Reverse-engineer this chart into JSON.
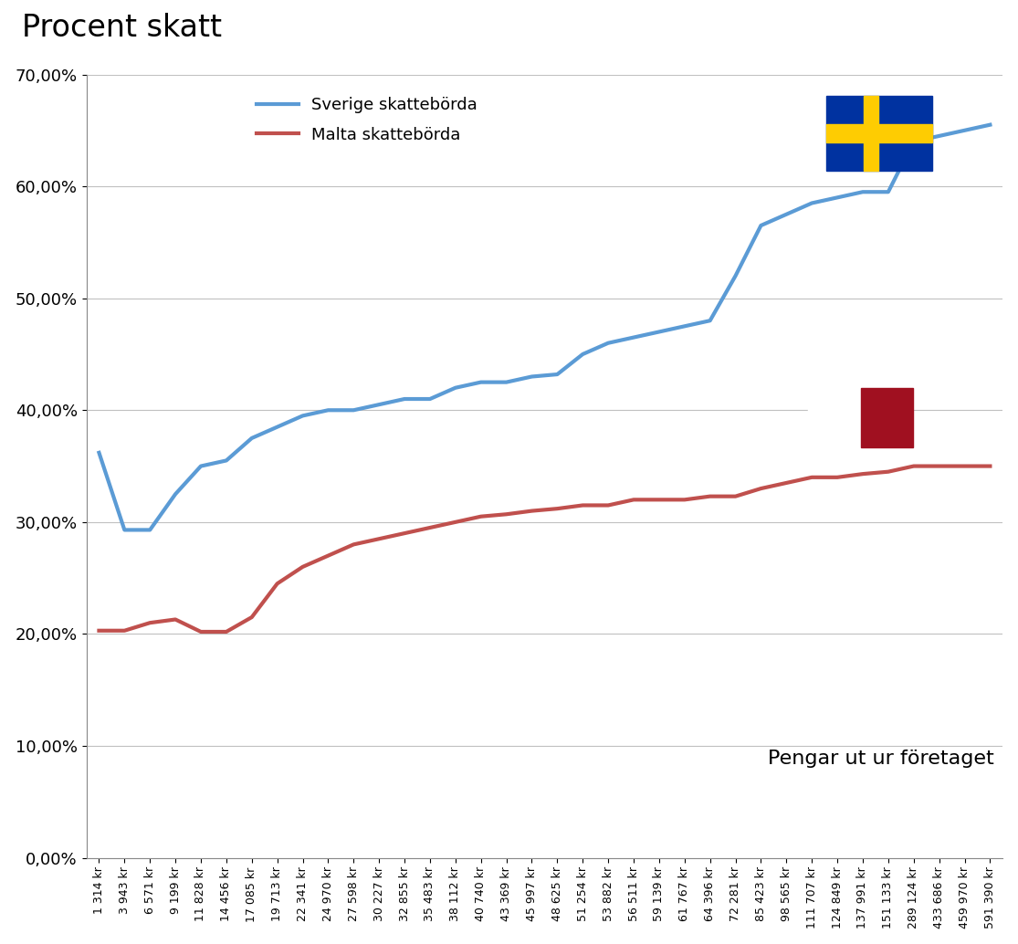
{
  "title_text": "Procent skatt",
  "xlabel": "Pengar ut ur företaget",
  "x_labels": [
    "1 314 kr",
    "3 943 kr",
    "6 571 kr",
    "9 199 kr",
    "11 828 kr",
    "14 456 kr",
    "17 085 kr",
    "19 713 kr",
    "22 341 kr",
    "24 970 kr",
    "27 598 kr",
    "30 227 kr",
    "32 855 kr",
    "35 483 kr",
    "38 112 kr",
    "40 740 kr",
    "43 369 kr",
    "45 997 kr",
    "48 625 kr",
    "51 254 kr",
    "53 882 kr",
    "56 511 kr",
    "59 139 kr",
    "61 767 kr",
    "64 396 kr",
    "72 281 kr",
    "85 423 kr",
    "98 565 kr",
    "111 707 kr",
    "124 849 kr",
    "137 991 kr",
    "151 133 kr",
    "289 124 kr",
    "433 686 kr",
    "459 970 kr",
    "591 390 kr"
  ],
  "sverige": [
    36.2,
    29.3,
    29.3,
    32.5,
    35.0,
    35.5,
    37.5,
    38.5,
    39.5,
    40.0,
    40.0,
    40.5,
    41.0,
    41.0,
    42.0,
    42.5,
    42.5,
    43.0,
    43.2,
    45.0,
    46.0,
    46.5,
    47.0,
    47.5,
    48.0,
    52.0,
    56.5,
    57.5,
    58.5,
    59.0,
    59.5,
    59.5,
    64.0,
    64.5,
    65.0,
    65.5
  ],
  "malta": [
    20.3,
    20.3,
    21.0,
    21.3,
    20.2,
    20.2,
    21.5,
    24.5,
    26.0,
    27.0,
    28.0,
    28.5,
    29.0,
    29.5,
    30.0,
    30.5,
    30.7,
    31.0,
    31.2,
    31.5,
    31.5,
    32.0,
    32.0,
    32.0,
    32.3,
    32.3,
    33.0,
    33.5,
    34.0,
    34.0,
    34.3,
    34.5,
    35.0,
    35.0,
    35.0,
    35.0
  ],
  "sverige_color": "#5B9BD5",
  "malta_color": "#C0504D",
  "sverige_label": "Sverige skattebörda",
  "malta_label": "Malta skattebörda",
  "ylim": [
    0.0,
    0.7
  ],
  "yticks": [
    0.0,
    0.1,
    0.2,
    0.3,
    0.4,
    0.5,
    0.6,
    0.7
  ],
  "ytick_labels": [
    "0,00%",
    "10,00%",
    "20,00%",
    "30,00%",
    "40,00%",
    "50,00%",
    "60,00%",
    "70,00%"
  ],
  "background_color": "#ffffff",
  "grid_color": "#c0c0c0",
  "sweden_flag_blue": "#0032A0",
  "sweden_flag_yellow": "#FECC02",
  "malta_flag_red": "#A01020"
}
